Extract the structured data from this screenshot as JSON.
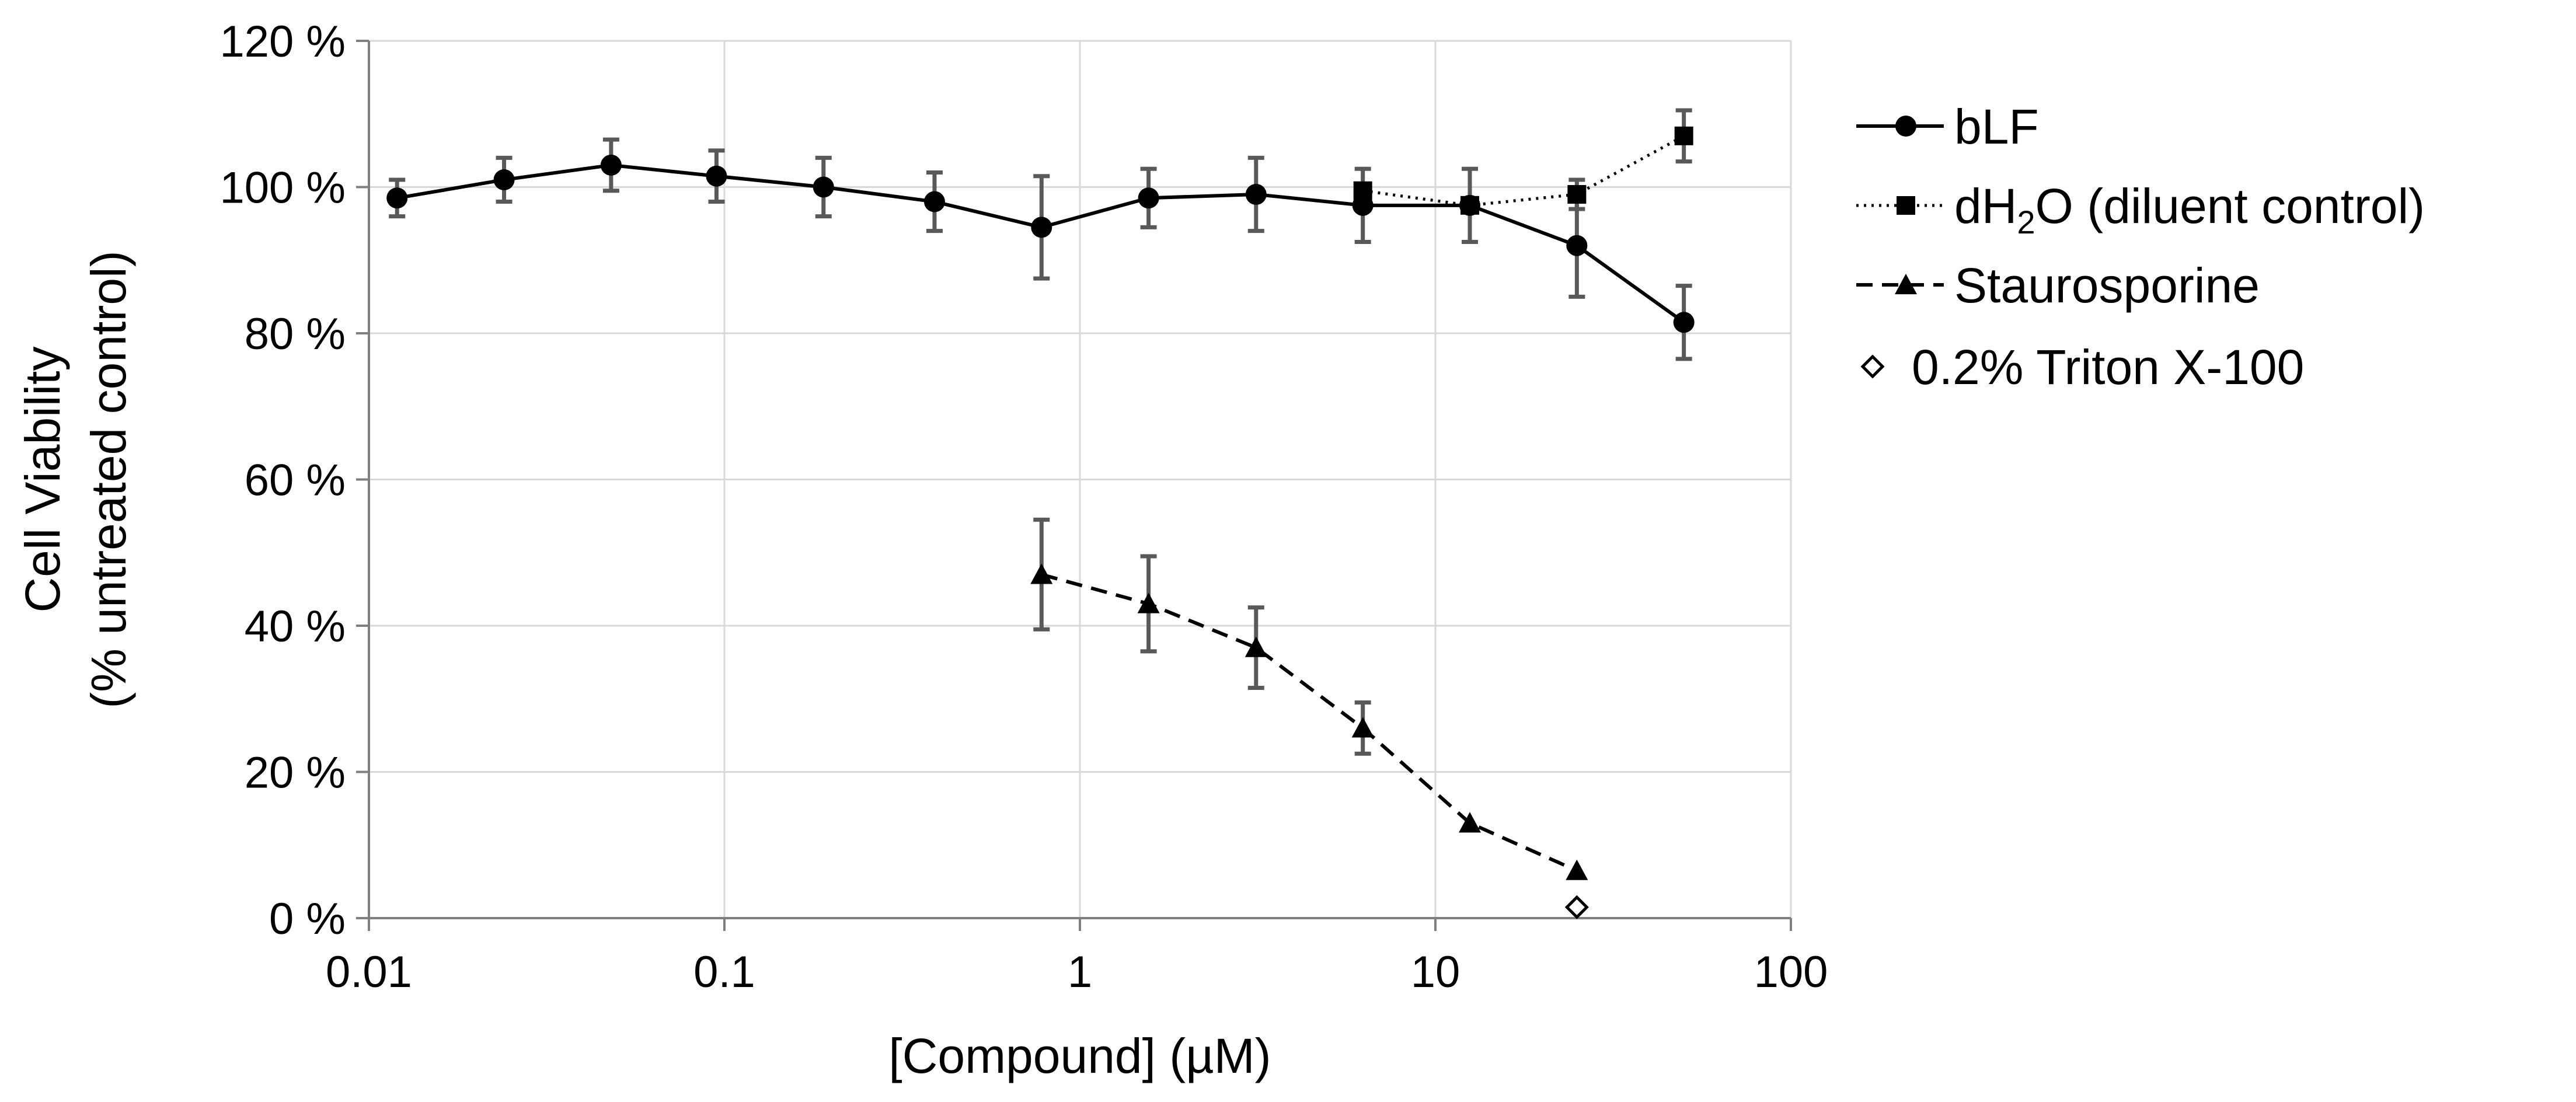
{
  "chart_data": {
    "type": "line",
    "title": "",
    "xlabel": "[Compound] (µM)",
    "ylabel": [
      "Cell Viability",
      "(% untreated control)"
    ],
    "xscale": "log",
    "xlim": [
      0.01,
      100
    ],
    "ylim": [
      0,
      120
    ],
    "xticks": [
      0.01,
      0.1,
      1,
      10,
      100
    ],
    "xtick_labels": [
      "0.01",
      "0.1",
      "1",
      "10",
      "100"
    ],
    "yticks": [
      0,
      20,
      40,
      60,
      80,
      100,
      120
    ],
    "ytick_labels": [
      "0 %",
      "20 %",
      "40 %",
      "60 %",
      "80 %",
      "100 %",
      "120 %"
    ],
    "grid": true,
    "legend_position": "right",
    "legend_order": [
      "bLF",
      "dH2O",
      "Staurosporine",
      "Triton"
    ],
    "series": [
      {
        "id": "bLF",
        "name": "bLF",
        "marker": "circle",
        "line": "solid",
        "x": [
          0.012,
          0.024,
          0.048,
          0.095,
          0.19,
          0.39,
          0.78,
          1.56,
          3.13,
          6.25,
          12.5,
          25,
          50
        ],
        "y": [
          98.5,
          101,
          103,
          101.5,
          100,
          98,
          94.5,
          98.5,
          99,
          97.5,
          97.5,
          92,
          81.5
        ],
        "err": [
          2.5,
          3,
          3.5,
          3.5,
          4,
          4,
          7,
          4,
          5,
          5,
          5,
          7,
          5
        ]
      },
      {
        "id": "dH2O",
        "name_parts": [
          "dH",
          "2",
          "O (diluent control)"
        ],
        "marker": "square",
        "line": "dotted",
        "x": [
          6.25,
          12.5,
          25,
          50
        ],
        "y": [
          99.5,
          97.5,
          99,
          107
        ],
        "err": [
          0,
          0,
          2,
          3.5
        ]
      },
      {
        "id": "Staurosporine",
        "name": "Staurosporine",
        "marker": "triangle",
        "line": "dashed",
        "x": [
          0.78,
          1.56,
          3.13,
          6.25,
          12.5,
          25
        ],
        "y": [
          47,
          43,
          37,
          26,
          13,
          6.5
        ],
        "err": [
          7.5,
          6.5,
          5.5,
          3.5,
          0,
          0
        ]
      },
      {
        "id": "Triton",
        "name": "0.2% Triton X-100",
        "marker": "diamond-open",
        "line": "none",
        "x": [
          25
        ],
        "y": [
          1.5
        ],
        "err": [
          0
        ]
      }
    ]
  }
}
